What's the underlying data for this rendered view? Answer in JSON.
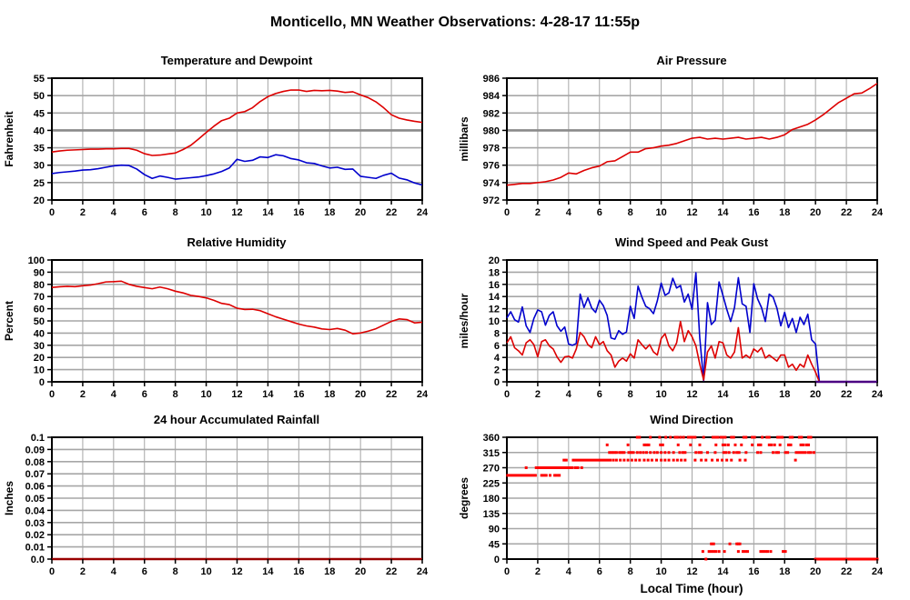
{
  "page": {
    "title": "Monticello, MN Weather Observations: 4-28-17 11:55p"
  },
  "colors": {
    "red": "#dd0000",
    "blue": "#0000cd",
    "scatter_red": "#ff0000",
    "dark_red": "#990000",
    "purple": "#4b0082",
    "grid": "#a6a6a6",
    "grid_major": "#8a8a8a",
    "border": "#000000"
  },
  "chart_data": [
    {
      "type": "line",
      "title": "Temperature and Dewpoint",
      "ylabel": "Fahrenheit",
      "xlabel": "",
      "xlim": [
        0,
        24
      ],
      "xtick_step": 2,
      "ylim": [
        20,
        55
      ],
      "yticks": [
        20,
        25,
        30,
        35,
        40,
        45,
        50,
        55
      ],
      "ytick_labels": [
        "20",
        "25",
        "30",
        "35",
        "40",
        "45",
        "50",
        "55"
      ],
      "highlight_y": 40,
      "series": [
        {
          "name": "temperature-line",
          "color": "red",
          "x_start": 0,
          "x_step": 0.5,
          "values": [
            33.8,
            34.1,
            34.3,
            34.4,
            34.5,
            34.6,
            34.6,
            34.7,
            34.7,
            34.8,
            34.8,
            34.3,
            33.3,
            32.8,
            32.9,
            33.2,
            33.5,
            34.5,
            35.7,
            37.5,
            39.4,
            41.2,
            42.8,
            43.5,
            45.0,
            45.4,
            46.5,
            48.3,
            49.7,
            50.6,
            51.2,
            51.6,
            51.6,
            51.2,
            51.5,
            51.4,
            51.5,
            51.3,
            50.9,
            51.1,
            50.2,
            49.4,
            48.2,
            46.5,
            44.5,
            43.5,
            43.0,
            42.6,
            42.3
          ]
        },
        {
          "name": "dewpoint-line",
          "color": "blue",
          "x_start": 0,
          "x_step": 0.5,
          "values": [
            27.6,
            27.9,
            28.1,
            28.3,
            28.6,
            28.7,
            29.0,
            29.4,
            29.8,
            30.0,
            29.9,
            28.9,
            27.3,
            26.2,
            26.9,
            26.5,
            26.0,
            26.2,
            26.4,
            26.6,
            27.0,
            27.5,
            28.2,
            29.2,
            31.7,
            31.1,
            31.4,
            32.4,
            32.2,
            33.0,
            32.7,
            31.9,
            31.5,
            30.7,
            30.5,
            29.8,
            29.2,
            29.4,
            28.8,
            28.9,
            26.8,
            26.5,
            26.2,
            27.1,
            27.7,
            26.3,
            25.8,
            24.9,
            24.3
          ]
        }
      ]
    },
    {
      "type": "line",
      "title": "Air Pressure",
      "ylabel": "millibars",
      "xlabel": "",
      "xlim": [
        0,
        24
      ],
      "xtick_step": 2,
      "ylim": [
        972,
        986
      ],
      "yticks": [
        972,
        974,
        976,
        978,
        980,
        982,
        984,
        986
      ],
      "ytick_labels": [
        "972",
        "974",
        "976",
        "978",
        "980",
        "982",
        "984",
        "986"
      ],
      "highlight_y": 980,
      "series": [
        {
          "name": "pressure-line",
          "color": "red",
          "x_start": 0,
          "x_step": 0.5,
          "values": [
            973.7,
            973.8,
            973.9,
            973.9,
            974.0,
            974.1,
            974.3,
            974.6,
            975.1,
            975.0,
            975.4,
            975.7,
            975.9,
            976.4,
            976.5,
            977.0,
            977.5,
            977.5,
            977.9,
            978.0,
            978.2,
            978.3,
            978.5,
            978.8,
            979.1,
            979.2,
            979.0,
            979.1,
            979.0,
            979.1,
            979.2,
            979.0,
            979.1,
            979.2,
            979.0,
            979.2,
            979.5,
            980.1,
            980.4,
            980.7,
            981.2,
            981.8,
            982.5,
            983.2,
            983.7,
            984.2,
            984.3,
            984.8,
            985.4
          ]
        }
      ]
    },
    {
      "type": "line",
      "title": "Relative Humidity",
      "ylabel": "Percent",
      "xlabel": "",
      "xlim": [
        0,
        24
      ],
      "xtick_step": 2,
      "ylim": [
        0,
        100
      ],
      "yticks": [
        0,
        10,
        20,
        30,
        40,
        50,
        60,
        70,
        80,
        90,
        100
      ],
      "ytick_labels": [
        "0",
        "10",
        "20",
        "30",
        "40",
        "50",
        "60",
        "70",
        "80",
        "90",
        "100"
      ],
      "series": [
        {
          "name": "humidity-line",
          "color": "red",
          "x_start": 0,
          "x_step": 0.5,
          "values": [
            77.5,
            78.0,
            78.4,
            78.1,
            78.9,
            79.4,
            80.6,
            82.0,
            82.2,
            82.6,
            80.0,
            78.4,
            77.4,
            76.4,
            77.8,
            76.4,
            74.4,
            73.0,
            71.0,
            70.1,
            68.9,
            66.9,
            64.4,
            63.4,
            60.4,
            59.4,
            59.6,
            58.4,
            55.9,
            53.4,
            51.4,
            49.4,
            47.4,
            45.9,
            44.9,
            43.4,
            42.9,
            43.8,
            42.4,
            39.4,
            40.1,
            41.6,
            43.6,
            46.6,
            49.6,
            51.6,
            51.1,
            48.4,
            48.9
          ]
        }
      ]
    },
    {
      "type": "line",
      "title": "Wind Speed and Peak Gust",
      "ylabel": "miles/hour",
      "xlabel": "",
      "xlim": [
        0,
        24
      ],
      "xtick_step": 2,
      "ylim": [
        0,
        20
      ],
      "yticks": [
        0,
        2,
        4,
        6,
        8,
        10,
        12,
        14,
        16,
        18,
        20
      ],
      "ytick_labels": [
        "0",
        "2",
        "4",
        "6",
        "8",
        "10",
        "12",
        "14",
        "16",
        "18",
        "20"
      ],
      "series": [
        {
          "name": "peak-gust-line",
          "color": "blue",
          "x_start": 0,
          "x_step": 0.25,
          "values": [
            10.5,
            11.5,
            10.2,
            9.8,
            12.3,
            9.2,
            8.1,
            10.4,
            11.8,
            11.5,
            9.3,
            10.9,
            11.5,
            9.2,
            8.3,
            9.0,
            6.2,
            6.0,
            6.3,
            14.4,
            12.2,
            13.8,
            12.1,
            11.4,
            13.4,
            12.5,
            10.9,
            7.2,
            7.0,
            8.4,
            7.8,
            8.2,
            12.4,
            10.4,
            15.7,
            13.9,
            12.4,
            12.0,
            11.2,
            13.3,
            16.2,
            14.2,
            14.6,
            17.0,
            15.4,
            15.8,
            13.1,
            14.4,
            11.9,
            17.9,
            7.2,
            0.2,
            13.0,
            9.4,
            10.1,
            16.4,
            14.2,
            11.9,
            9.9,
            12.2,
            17.1,
            12.8,
            12.4,
            8.1,
            16.1,
            13.6,
            12.2,
            9.9,
            14.4,
            13.9,
            12.1,
            9.2,
            11.4,
            8.9,
            10.4,
            8.1,
            10.6,
            9.4,
            11.1,
            6.9,
            6.2,
            0,
            0,
            0,
            0,
            0,
            0,
            0,
            0,
            0,
            0,
            0,
            0,
            0,
            0,
            0,
            0
          ]
        },
        {
          "name": "wind-speed-line",
          "color": "red",
          "x_start": 0,
          "x_step": 0.25,
          "values": [
            6.4,
            7.4,
            5.6,
            5.1,
            4.4,
            6.4,
            6.9,
            6.1,
            4.1,
            6.6,
            6.9,
            5.9,
            5.4,
            4.1,
            3.2,
            4.1,
            4.2,
            3.9,
            5.4,
            8.1,
            7.4,
            6.1,
            5.6,
            7.4,
            6.1,
            6.6,
            5.1,
            4.4,
            2.4,
            3.4,
            3.9,
            3.4,
            4.6,
            3.9,
            6.9,
            6.1,
            5.4,
            6.1,
            4.9,
            4.4,
            7.1,
            7.9,
            5.9,
            5.1,
            6.4,
            9.9,
            6.6,
            8.4,
            7.4,
            5.9,
            2.9,
            0.3,
            4.9,
            5.9,
            3.9,
            6.6,
            6.4,
            4.4,
            3.9,
            4.9,
            8.9,
            3.9,
            4.4,
            3.9,
            5.4,
            4.9,
            5.6,
            3.9,
            4.4,
            3.9,
            3.4,
            4.4,
            4.4,
            2.4,
            2.9,
            1.9,
            2.9,
            2.4,
            4.4,
            2.9,
            1.6,
            0,
            0,
            0,
            0,
            0,
            0,
            0,
            0,
            0,
            0,
            0,
            0,
            0,
            0,
            0,
            0
          ]
        },
        {
          "name": "calm-overlap-line",
          "color": "purple",
          "x_start": 20,
          "x_step": 4,
          "width": 2.5,
          "values": [
            0,
            0
          ]
        }
      ]
    },
    {
      "type": "line",
      "title": "24 hour Accumulated Rainfall",
      "ylabel": "Inches",
      "xlabel": "",
      "xlim": [
        0,
        24
      ],
      "xtick_step": 2,
      "ylim": [
        0,
        0.1
      ],
      "yticks": [
        0,
        0.01,
        0.02,
        0.03,
        0.04,
        0.05,
        0.06,
        0.07,
        0.08,
        0.09,
        0.1
      ],
      "ytick_labels": [
        "0.0",
        "0.01",
        "0.02",
        "0.03",
        "0.04",
        "0.05",
        "0.06",
        "0.07",
        "0.08",
        "0.09",
        "0.1"
      ],
      "series": [
        {
          "name": "rainfall-line",
          "color": "dark_red",
          "x_start": 0,
          "x_step": 24,
          "width": 2.5,
          "values": [
            0,
            0
          ]
        }
      ]
    },
    {
      "type": "scatter",
      "title": "Wind Direction",
      "ylabel": "degrees",
      "xlabel": "Local Time (hour)",
      "xlim": [
        0,
        24
      ],
      "xtick_step": 2,
      "ylim": [
        0,
        360
      ],
      "yticks": [
        0,
        45,
        90,
        135,
        180,
        225,
        270,
        315,
        360
      ],
      "ytick_labels": [
        "0",
        "45",
        "90",
        "135",
        "180",
        "225",
        "270",
        "315",
        "360"
      ],
      "series": [
        {
          "name": "wind-direction-dots",
          "style": "scatter",
          "color": "scatter_red",
          "marker_size": 3,
          "levels": [
            {
              "deg": 247.5,
              "segments": [
                [
                  0.05,
                  1.85
                ]
              ],
              "dots": [
                2.25,
                2.4,
                2.55,
                2.8,
                3.1,
                3.25,
                3.4
              ]
            },
            {
              "deg": 270,
              "segments": [
                [
                  1.9,
                  4.25
                ]
              ],
              "dots": [
                1.25,
                4.45,
                4.6,
                4.85
              ]
            },
            {
              "deg": 292.5,
              "segments": [
                [
                  4.3,
                  6.7
                ]
              ],
              "dots": [
                3.7,
                3.85,
                6.9,
                7.1,
                7.35,
                7.6,
                7.85,
                8.1,
                8.35,
                8.6,
                8.9,
                9.15,
                9.4,
                9.7,
                10.0,
                10.25,
                10.5,
                10.8,
                11.05,
                11.3,
                11.55,
                12.2,
                12.6,
                12.9,
                13.3,
                13.65,
                13.95,
                14.25,
                14.55,
                15.1,
                15.45,
                18.7
              ]
            },
            {
              "deg": 315,
              "segments": [
                [
                  18.75,
                  19.35
                ]
              ],
              "dots": [
                6.65,
                6.8,
                6.95,
                7.1,
                7.3,
                7.45,
                7.6,
                7.9,
                8.05,
                8.2,
                8.45,
                8.65,
                8.85,
                9.05,
                9.3,
                9.55,
                9.75,
                10.0,
                10.25,
                10.5,
                10.8,
                11.2,
                11.4,
                11.55,
                12.25,
                12.45,
                12.6,
                13.0,
                13.5,
                14.05,
                14.2,
                14.4,
                14.7,
                14.9,
                15.05,
                15.5,
                16.25,
                16.45,
                17.25,
                17.45,
                17.6,
                18.05,
                18.2,
                19.55,
                19.7,
                19.9
              ]
            },
            {
              "deg": 337.5,
              "dots": [
                6.5,
                7.85,
                8.9,
                9.05,
                9.2,
                9.95,
                10.1,
                11.1,
                11.9,
                12.5,
                13.55,
                14.0,
                14.15,
                14.35,
                14.8,
                15.2,
                15.9,
                16.3,
                16.45,
                17.0,
                17.15,
                17.35,
                17.7,
                18.25,
                18.4,
                19.05,
                19.2,
                19.4,
                19.55
              ]
            },
            {
              "deg": 360,
              "dots": [
                8.45,
                8.6,
                9.3,
                9.9,
                10.3,
                10.6,
                10.9,
                11.05,
                11.25,
                11.45,
                11.75,
                11.9,
                12.05,
                12.2,
                12.75,
                13.35,
                13.5,
                13.65,
                13.85,
                14.0,
                14.15,
                14.55,
                14.7,
                15.35,
                15.5,
                15.9,
                16.05,
                16.55,
                16.85,
                17.0,
                17.55,
                17.7,
                17.85,
                18.35,
                18.5,
                18.95,
                19.1,
                19.55,
                19.7
              ]
            },
            {
              "deg": 45,
              "dots": [
                13.25,
                13.4,
                14.45,
                14.9,
                15.0,
                15.1
              ]
            },
            {
              "deg": 22.5,
              "dots": [
                12.7,
                13.1,
                13.25,
                13.4,
                13.55,
                13.75,
                14.1,
                15.0,
                15.3,
                15.45,
                15.6,
                16.45,
                16.6,
                16.75,
                16.9,
                17.1,
                17.9,
                18.05
              ]
            },
            {
              "deg": 0,
              "segments": [
                [
                  20.0,
                  24.0
                ]
              ],
              "dots": [
                12.9
              ],
              "line_width": 3
            }
          ]
        }
      ]
    }
  ]
}
